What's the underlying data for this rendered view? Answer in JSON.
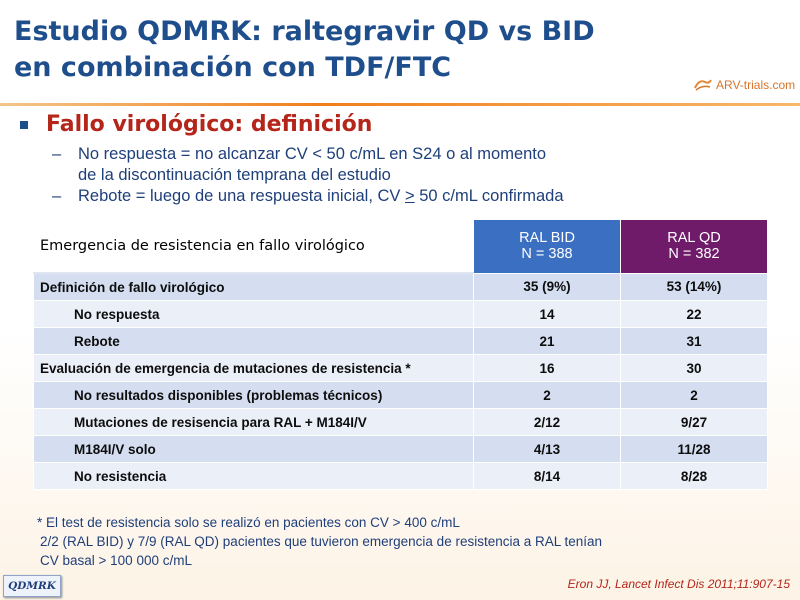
{
  "title": {
    "line1": "Estudio QDMRK: raltegravir QD vs BID",
    "line2": "en combinación con TDF/FTC"
  },
  "logo": {
    "text": "ARV-trials.com",
    "icon": "arv-swirl-icon"
  },
  "bullet": {
    "heading": "Fallo virológico: definición",
    "subs": [
      {
        "dash": "–",
        "line1": "No respuesta = no alcanzar CV < 50 c/mL en S24 o al momento",
        "line2": "de la discontinuación temprana del estudio"
      },
      {
        "dash": "–",
        "text": "Rebote = luego de una respuesta inicial, CV > 50 c/mL confirmada"
      }
    ]
  },
  "table": {
    "header": {
      "label": "Emergencia de resistencia en fallo virológico",
      "col1": {
        "name": "RAL BID",
        "n": "N = 388"
      },
      "col2": {
        "name": "RAL QD",
        "n": "N = 382"
      }
    },
    "rows": [
      {
        "label": "Definición de fallo virológico",
        "bid": "35 (9%)",
        "qd": "53 (14%)"
      },
      {
        "label": "No respuesta",
        "bid": "14",
        "qd": "22"
      },
      {
        "label": "Rebote",
        "bid": "21",
        "qd": "31"
      },
      {
        "label": "Evaluación de emergencia de mutaciones de resistencia *",
        "bid": "16",
        "qd": "30"
      },
      {
        "label": "No resultados disponibles (problemas técnicos)",
        "bid": "2",
        "qd": "2"
      },
      {
        "label": "Mutaciones de resisencia para RAL + M184I/V",
        "bid": "2/12",
        "qd": "9/27"
      },
      {
        "label": "M184I/V solo",
        "bid": "4/13",
        "qd": "11/28"
      },
      {
        "label": "No resistencia",
        "bid": "8/14",
        "qd": "8/28"
      }
    ]
  },
  "footnote": {
    "line1": "* El test de resistencia solo se realizó en pacientes con CV > 400 c/mL",
    "line2": "2/2 (RAL BID) y 7/9 (RAL QD) pacientes que tuvieron emergencia de resistencia a RAL tenían",
    "line3": "CV basal > 100 000 c/mL"
  },
  "reference": "Eron JJ, Lancet Infect Dis 2011;11:907-15",
  "tag": "QDMRK",
  "colors": {
    "title": "#1f4e8c",
    "heading": "#b4251a",
    "bid": "#3a6fc1",
    "qd": "#6f1b6a",
    "accent": "#f07f1b"
  }
}
